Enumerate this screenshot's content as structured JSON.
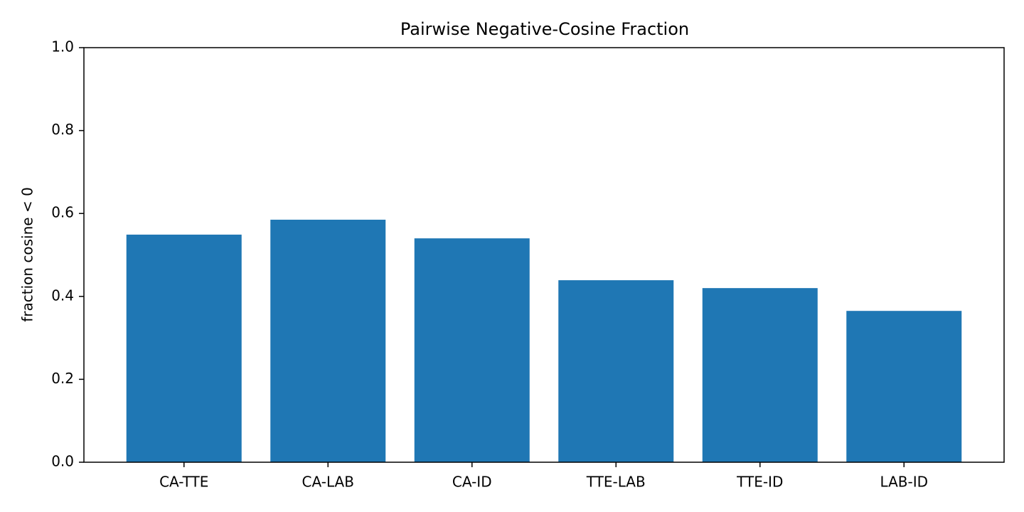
{
  "chart_data": {
    "type": "bar",
    "title": "Pairwise Negative-Cosine Fraction",
    "y_label": "fraction cosine < 0",
    "categories": [
      "CA-TTE",
      "CA-LAB",
      "CA-ID",
      "TTE-LAB",
      "TTE-ID",
      "LAB-ID"
    ],
    "values": [
      0.549,
      0.585,
      0.54,
      0.439,
      0.42,
      0.365
    ],
    "color": "#1f77b4",
    "ylim": [
      0,
      1
    ],
    "yticks": [
      {
        "value": 0,
        "label": "0.0"
      },
      0.2,
      0.4,
      0.6,
      0.8,
      {
        "value": 1,
        "label": "1.0"
      }
    ],
    "grid": false
  }
}
